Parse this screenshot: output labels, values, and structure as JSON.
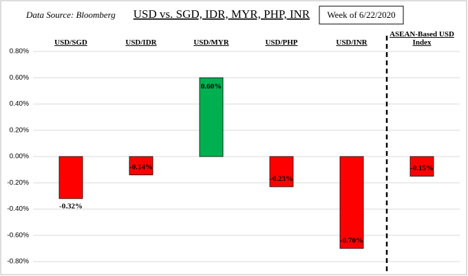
{
  "chart_data": {
    "type": "bar",
    "title": "USD vs. SGD, IDR, MYR, PHP, INR",
    "source": "Data Source: Bloomberg",
    "note": "Week of 6/22/2020",
    "categories": [
      "USD/SGD",
      "USD/IDR",
      "USD/MYR",
      "USD/PHP",
      "USD/INR",
      "ASEAN-Based USD Index"
    ],
    "values": [
      -0.32,
      -0.14,
      0.6,
      -0.23,
      -0.7,
      -0.15
    ],
    "value_labels": [
      "-0.32%",
      "-0.14%",
      "0.60%",
      "-0.23%",
      "-0.70%",
      "-0.15%"
    ],
    "colors": [
      "#ff0000",
      "#ff0000",
      "#00b050",
      "#ff0000",
      "#ff0000",
      "#ff0000"
    ],
    "ylim": [
      -0.8,
      0.8
    ],
    "yticks": [
      {
        "value": -0.8,
        "label": "-0.80%"
      },
      {
        "value": -0.6,
        "label": "-0.60%"
      },
      {
        "value": -0.4,
        "label": "-0.40%"
      },
      {
        "value": -0.2,
        "label": "-0.20%"
      },
      {
        "value": 0,
        "label": "0.00%"
      },
      {
        "value": 0.2,
        "label": "0.20%"
      },
      {
        "value": 0.4,
        "label": "0.40%"
      },
      {
        "value": 0.6,
        "label": "0.60%"
      },
      {
        "value": 0.8,
        "label": "0.80%"
      }
    ],
    "grid": true
  }
}
